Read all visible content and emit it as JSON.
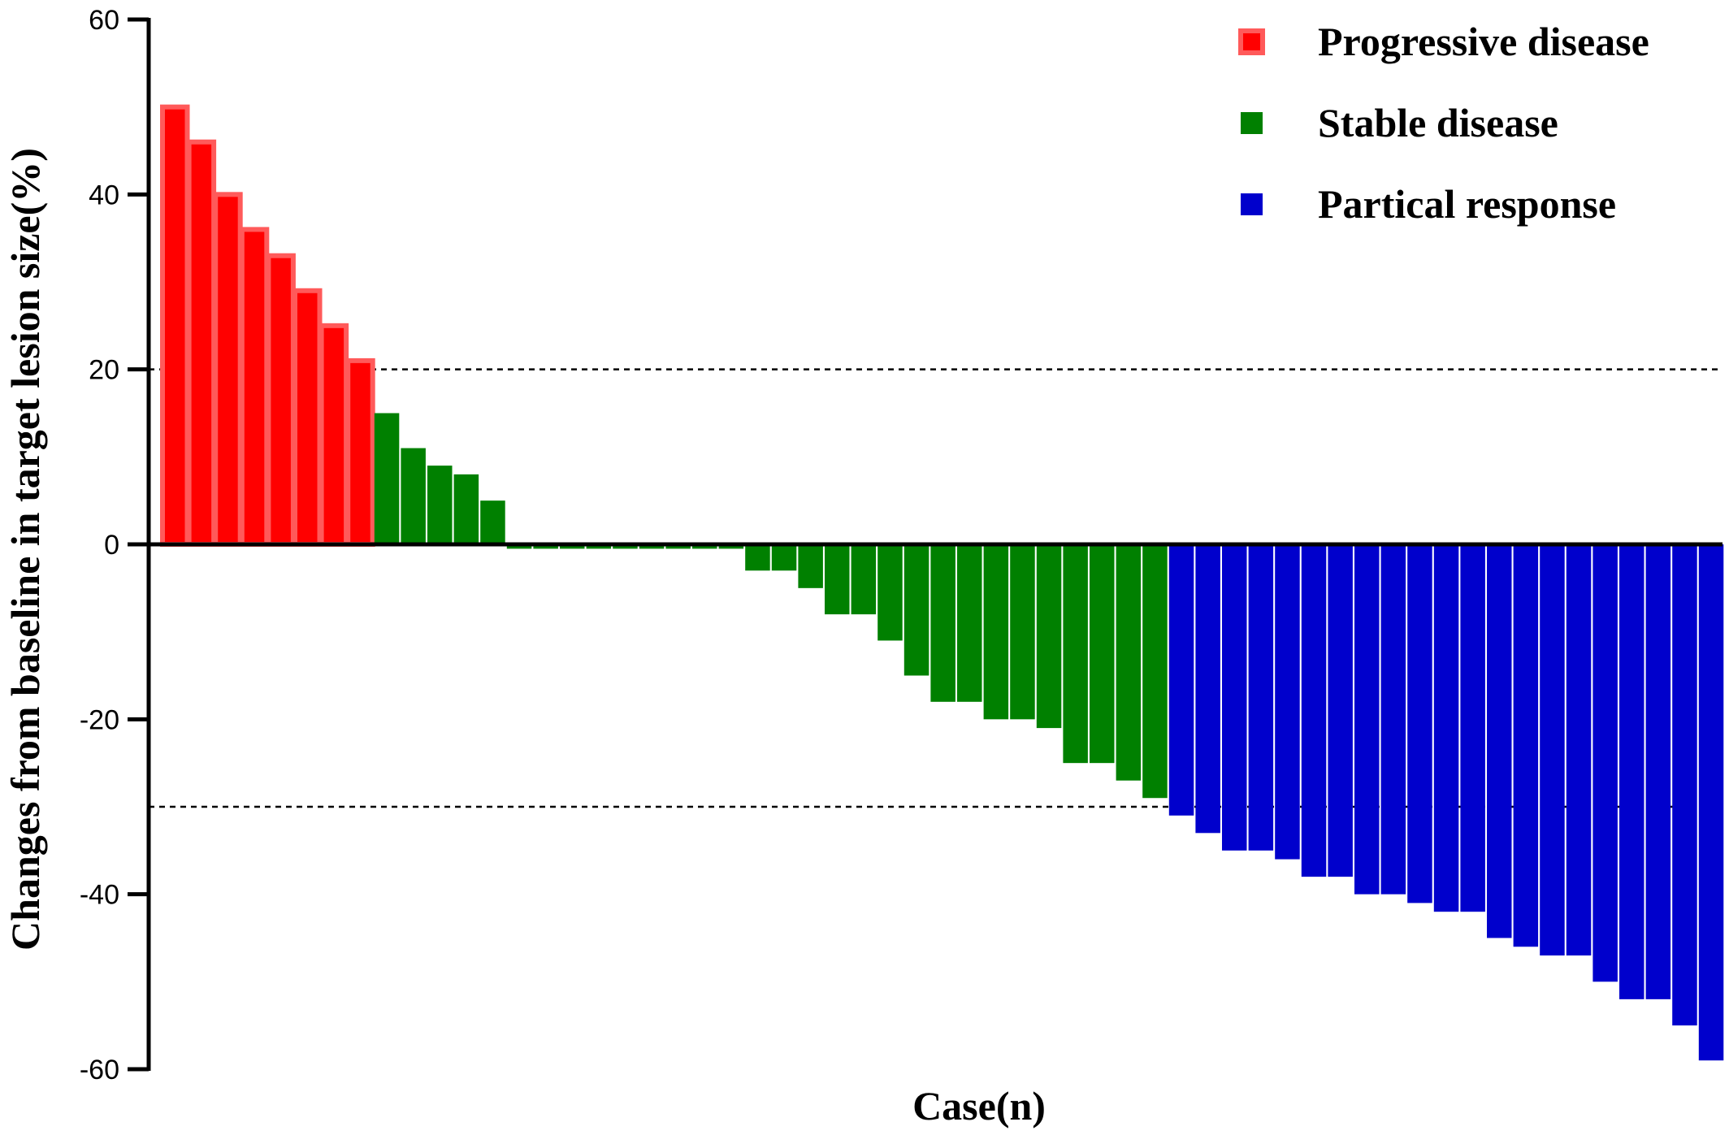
{
  "chart_data": {
    "type": "bar",
    "title": "",
    "xlabel": "Case(n)",
    "ylabel": "Changes from baseline in target lesion size(%)",
    "ylim": [
      -60,
      60
    ],
    "yticks": [
      60,
      40,
      20,
      0,
      -20,
      -40,
      -60
    ],
    "reference_lines": [
      20,
      -30
    ],
    "legend_position": "top-right",
    "series": [
      {
        "name": "Progressive disease",
        "color": "#ff0000",
        "values": [
          50,
          46,
          40,
          36,
          33,
          29,
          25,
          21
        ]
      },
      {
        "name": "Stable disease",
        "color": "#008000",
        "values": [
          15,
          11,
          9,
          8,
          5,
          -0.5,
          -0.5,
          -0.5,
          -0.5,
          -0.5,
          -0.5,
          -0.5,
          -0.5,
          -0.5,
          -3,
          -3,
          -5,
          -8,
          -8,
          -11,
          -15,
          -18,
          -18,
          -20,
          -20,
          -21,
          -25,
          -25,
          -27,
          -29
        ]
      },
      {
        "name": "Partical response",
        "color": "#0000cc",
        "values": [
          -31,
          -33,
          -35,
          -35,
          -36,
          -38,
          -38,
          -40,
          -40,
          -41,
          -42,
          -42,
          -45,
          -46,
          -47,
          -47,
          -50,
          -52,
          -52,
          -55,
          -59
        ]
      }
    ]
  }
}
